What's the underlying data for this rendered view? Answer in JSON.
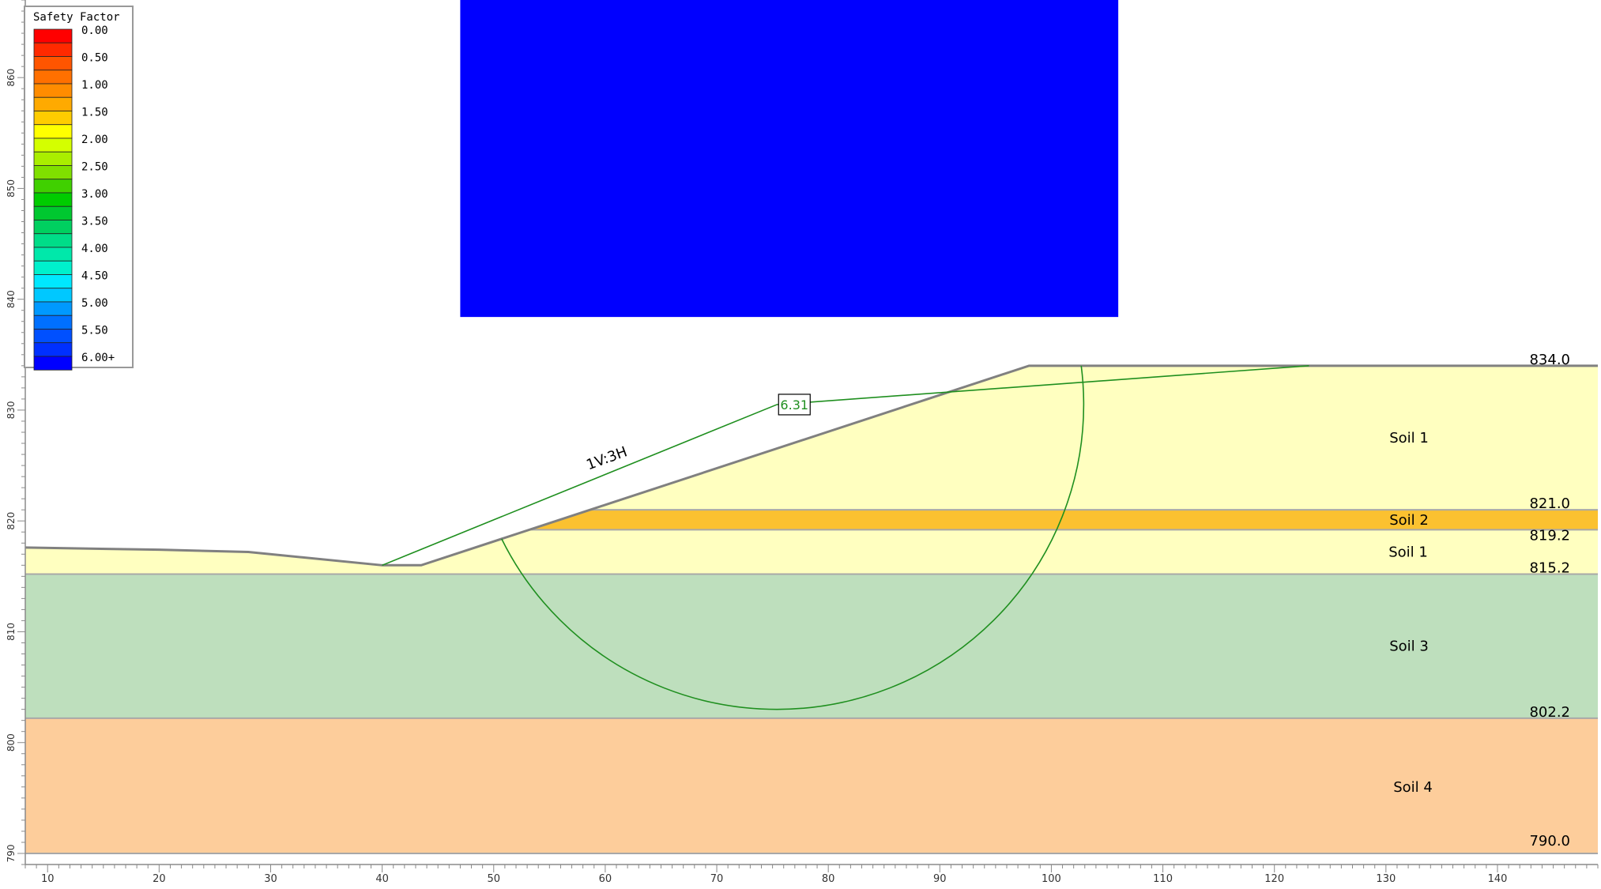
{
  "legend": {
    "title": "Safety Factor",
    "items": [
      {
        "label": "0.00",
        "color": "#ff0000"
      },
      {
        "label": "",
        "color": "#ff2a00"
      },
      {
        "label": "0.50",
        "color": "#ff5500"
      },
      {
        "label": "",
        "color": "#ff7000"
      },
      {
        "label": "1.00",
        "color": "#ff8c00"
      },
      {
        "label": "",
        "color": "#ffaa00"
      },
      {
        "label": "1.50",
        "color": "#ffcc00"
      },
      {
        "label": "",
        "color": "#ffff00"
      },
      {
        "label": "2.00",
        "color": "#d4ff00"
      },
      {
        "label": "",
        "color": "#aaee00"
      },
      {
        "label": "2.50",
        "color": "#80e000"
      },
      {
        "label": "",
        "color": "#40d000"
      },
      {
        "label": "3.00",
        "color": "#00cc00"
      },
      {
        "label": "",
        "color": "#00c830"
      },
      {
        "label": "3.50",
        "color": "#00d060"
      },
      {
        "label": "",
        "color": "#00dd88"
      },
      {
        "label": "4.00",
        "color": "#00e8aa"
      },
      {
        "label": "",
        "color": "#00f0cc"
      },
      {
        "label": "4.50",
        "color": "#00e8ff"
      },
      {
        "label": "",
        "color": "#00c8ff"
      },
      {
        "label": "5.00",
        "color": "#0099ff"
      },
      {
        "label": "",
        "color": "#0070ff"
      },
      {
        "label": "5.50",
        "color": "#0050ff"
      },
      {
        "label": "",
        "color": "#0030ff"
      },
      {
        "label": "6.00+",
        "color": "#0000ff"
      }
    ]
  },
  "x_axis": {
    "min": 8,
    "max": 149,
    "ticks": [
      10,
      20,
      30,
      40,
      50,
      60,
      70,
      80,
      90,
      100,
      110,
      120,
      130,
      140
    ]
  },
  "y_axis": {
    "min": 789,
    "max": 867,
    "ticks": [
      790,
      800,
      810,
      820,
      830,
      840,
      850,
      860
    ]
  },
  "grid": {
    "x_min": 47,
    "x_max": 106,
    "y_min": 838.4,
    "y_max": 867,
    "color": "#0000ff"
  },
  "critical_surface": {
    "safety_factor_label": "6.31",
    "center": [
      75.4,
      830.5
    ],
    "radius": 27.5,
    "entry": [
      40,
      816
    ],
    "exit": [
      123.1,
      834
    ]
  },
  "ground_profile": [
    [
      8,
      817.6
    ],
    [
      20,
      817.4
    ],
    [
      28,
      817.2
    ],
    [
      40,
      816
    ],
    [
      43.5,
      816
    ],
    [
      98,
      834
    ],
    [
      149,
      834
    ]
  ],
  "slope_label": "1V:3H",
  "layers": [
    {
      "name": "Soil 1",
      "top": 834.0,
      "bottom": 821.0,
      "top_label": "834.0",
      "color": "#ffffc0"
    },
    {
      "name": "Soil 2",
      "top": 821.0,
      "bottom": 819.2,
      "top_label": "821.0",
      "color": "#fbc130"
    },
    {
      "name": "Soil 1",
      "top": 819.2,
      "bottom": 815.2,
      "top_label": "819.2",
      "color": "#ffffc0"
    },
    {
      "name": "Soil 3",
      "top": 815.2,
      "bottom": 802.2,
      "top_label": "815.2",
      "color": "#bedfbd"
    },
    {
      "name": "Soil 4",
      "top": 802.2,
      "bottom": 790.0,
      "top_label": "802.2",
      "color": "#fdcd9b"
    }
  ],
  "base_label": "790.0"
}
